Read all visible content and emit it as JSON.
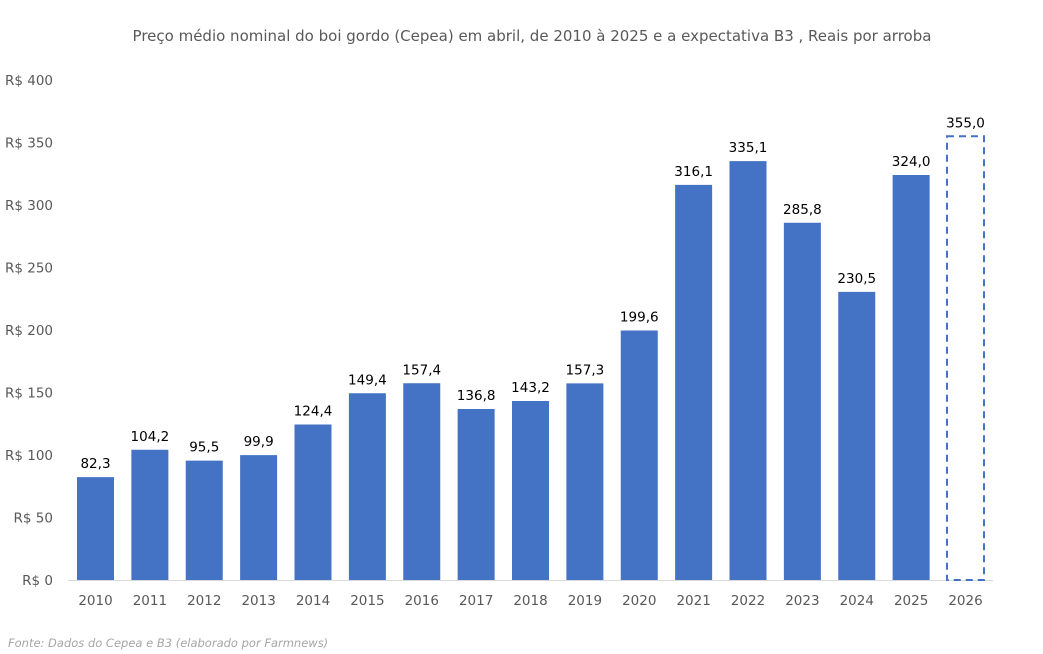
{
  "chart_data": {
    "type": "bar",
    "title": "Preço médio nominal do boi gordo (Cepea) em abril, de 2010 à 2025 e a expectativa B3 , Reais por arroba",
    "xlabel": "",
    "ylabel": "",
    "ylim": [
      0,
      400
    ],
    "yticks": [
      0,
      50,
      100,
      150,
      200,
      250,
      300,
      350,
      400
    ],
    "ytick_labels": [
      "R$ 0",
      "R$ 50",
      "R$ 100",
      "R$ 150",
      "R$ 200",
      "R$ 250",
      "R$ 300",
      "R$ 350",
      "R$ 400"
    ],
    "grid": false,
    "categories": [
      "2010",
      "2011",
      "2012",
      "2013",
      "2014",
      "2015",
      "2016",
      "2017",
      "2018",
      "2019",
      "2020",
      "2021",
      "2022",
      "2023",
      "2024",
      "2025",
      "2026"
    ],
    "values": [
      82.3,
      104.2,
      95.5,
      99.9,
      124.4,
      149.4,
      157.4,
      136.8,
      143.2,
      157.3,
      199.6,
      316.1,
      335.1,
      285.8,
      230.5,
      324.0,
      355.0
    ],
    "data_labels": [
      "82,3",
      "104,2",
      "95,5",
      "99,9",
      "124,4",
      "149,4",
      "157,4",
      "136,8",
      "143,2",
      "157,3",
      "199,6",
      "316,1",
      "335,1",
      "285,8",
      "230,5",
      "324,0",
      "355,0"
    ],
    "projected": [
      false,
      false,
      false,
      false,
      false,
      false,
      false,
      false,
      false,
      false,
      false,
      false,
      false,
      false,
      false,
      false,
      true
    ],
    "bar_color": "#4472C4"
  },
  "source": "Fonte: Dados do Cepea e B3 (elaborado por Farmnews)"
}
